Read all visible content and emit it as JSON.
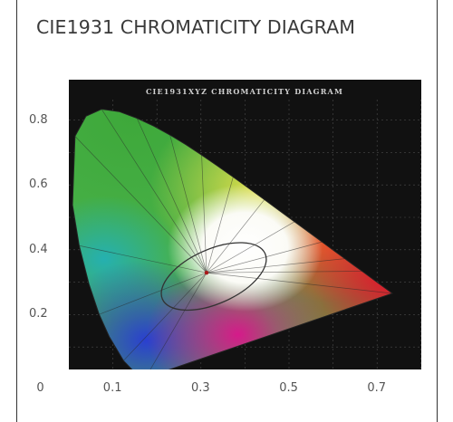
{
  "chart_data": {
    "type": "scatter",
    "title": "CIE1931 CHROMATICITY DIAGRAM",
    "inner_title": "CIE1931XYZ CHROMATICITY DIAGRAM",
    "xlabel": "",
    "ylabel": "",
    "xlim": [
      0,
      0.8
    ],
    "ylim": [
      0,
      0.9
    ],
    "x_ticks": [
      {
        "value": 0,
        "label": "0"
      },
      {
        "value": 0.1,
        "label": "0.1"
      },
      {
        "value": 0.3,
        "label": "0.3"
      },
      {
        "value": 0.5,
        "label": "0.5"
      },
      {
        "value": 0.7,
        "label": "0.7"
      }
    ],
    "y_ticks": [
      {
        "value": 0.8,
        "label": "0.8"
      },
      {
        "value": 0.6,
        "label": "0.6"
      },
      {
        "value": 0.4,
        "label": "0.4"
      },
      {
        "value": 0.2,
        "label": "0.2"
      }
    ],
    "spectral_locus": [
      [
        0.1741,
        0.005
      ],
      [
        0.144,
        0.0297
      ],
      [
        0.1241,
        0.0578
      ],
      [
        0.0913,
        0.1327
      ],
      [
        0.0687,
        0.2007
      ],
      [
        0.0454,
        0.295
      ],
      [
        0.0235,
        0.4127
      ],
      [
        0.0082,
        0.5384
      ],
      [
        0.0139,
        0.7502
      ],
      [
        0.0389,
        0.812
      ],
      [
        0.0743,
        0.8338
      ],
      [
        0.1142,
        0.8262
      ],
      [
        0.1547,
        0.8059
      ],
      [
        0.1929,
        0.7816
      ],
      [
        0.2296,
        0.7543
      ],
      [
        0.2658,
        0.7243
      ],
      [
        0.3016,
        0.6923
      ],
      [
        0.3373,
        0.6589
      ],
      [
        0.3731,
        0.6245
      ],
      [
        0.4087,
        0.5896
      ],
      [
        0.4441,
        0.5547
      ],
      [
        0.4788,
        0.5202
      ],
      [
        0.5125,
        0.4866
      ],
      [
        0.5448,
        0.4544
      ],
      [
        0.5752,
        0.4242
      ],
      [
        0.6029,
        0.3965
      ],
      [
        0.627,
        0.3725
      ],
      [
        0.6482,
        0.3514
      ],
      [
        0.6658,
        0.334
      ],
      [
        0.6915,
        0.3083
      ],
      [
        0.7347,
        0.2653
      ]
    ],
    "white_point": {
      "x": 0.3127,
      "y": 0.329
    },
    "colors": {
      "plot_background": "#111111",
      "grid": "#4a4a4a",
      "locus_edge": "#222222"
    },
    "grid": true
  }
}
